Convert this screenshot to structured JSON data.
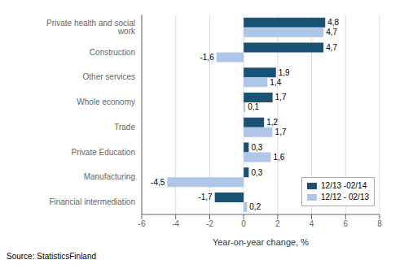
{
  "chart_data": {
    "type": "bar",
    "orientation": "horizontal",
    "categories": [
      "Financial intermediation",
      "Manufacturing",
      "Private Education",
      "Trade",
      "Whole economy",
      "Other services",
      "Construction",
      "Private health and social work"
    ],
    "series": [
      {
        "name": "12/13 -02/14",
        "color": "#1a5276",
        "values": [
          -1.7,
          0.3,
          0.3,
          1.2,
          1.7,
          1.9,
          4.7,
          4.8
        ],
        "value_labels": [
          "-1,7",
          "0,3",
          "0,3",
          "1,2",
          "1,7",
          "1,9",
          "4,7",
          "4,8"
        ]
      },
      {
        "name": "12/12 - 02/13",
        "color": "#aec6e8",
        "values": [
          0.2,
          -4.5,
          1.6,
          1.7,
          0.1,
          1.4,
          -1.6,
          4.7
        ],
        "value_labels": [
          "0,2",
          "-4,5",
          "1,6",
          "1,7",
          "0,1",
          "1,4",
          "-1,6",
          "4,7"
        ]
      }
    ],
    "xlabel": "Year-on-year change, %",
    "xlim": [
      -6,
      8
    ],
    "xticks": [
      -6,
      -4,
      -2,
      0,
      2,
      4,
      6,
      8
    ],
    "grid": true,
    "legend": "lower right",
    "data_labels": true,
    "annotations": [
      "Source: StatisticsFinland"
    ]
  }
}
